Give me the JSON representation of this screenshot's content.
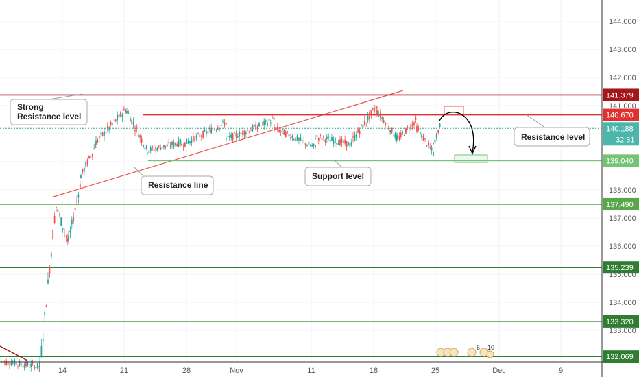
{
  "chart_data": {
    "type": "candlestick",
    "symbol_currency": "price",
    "y_range": [
      131.6,
      145.0
    ],
    "y_ticks": [
      "144.000",
      "143.000",
      "142.000",
      "141.000",
      "140.000",
      "139.000",
      "138.000",
      "137.000",
      "136.000",
      "135.000",
      "134.000",
      "133.000"
    ],
    "x_ticks": [
      "14",
      "21",
      "28",
      "Nov",
      "11",
      "18",
      "25",
      "Dec",
      "9"
    ],
    "current_price": {
      "value": "140.188",
      "timer": "32:31"
    },
    "levels": [
      {
        "label": "141.379",
        "price": 141.379,
        "color": "#a4161a"
      },
      {
        "label": "140.670",
        "price": 140.67,
        "color": "#e03131"
      },
      {
        "label": "139.040",
        "price": 139.04,
        "color": "#74c476"
      },
      {
        "label": "137.490",
        "price": 137.49,
        "color": "#5aa64a"
      },
      {
        "label": "135.239",
        "price": 135.239,
        "color": "#2e7d32"
      },
      {
        "label": "133.320",
        "price": 133.32,
        "color": "#2e7d32"
      },
      {
        "label": "132.069",
        "price": 132.069,
        "color": "#2e7d32"
      }
    ],
    "annotations": {
      "strong_resistance": [
        "Strong",
        "Resistance level"
      ],
      "resistance_line": "Resistance line",
      "support_level": "Support level",
      "resistance_level": "Resistance level"
    },
    "event_badges": [
      "6",
      "10"
    ],
    "colors": {
      "up": "#26a69a",
      "down": "#ef5350"
    }
  }
}
